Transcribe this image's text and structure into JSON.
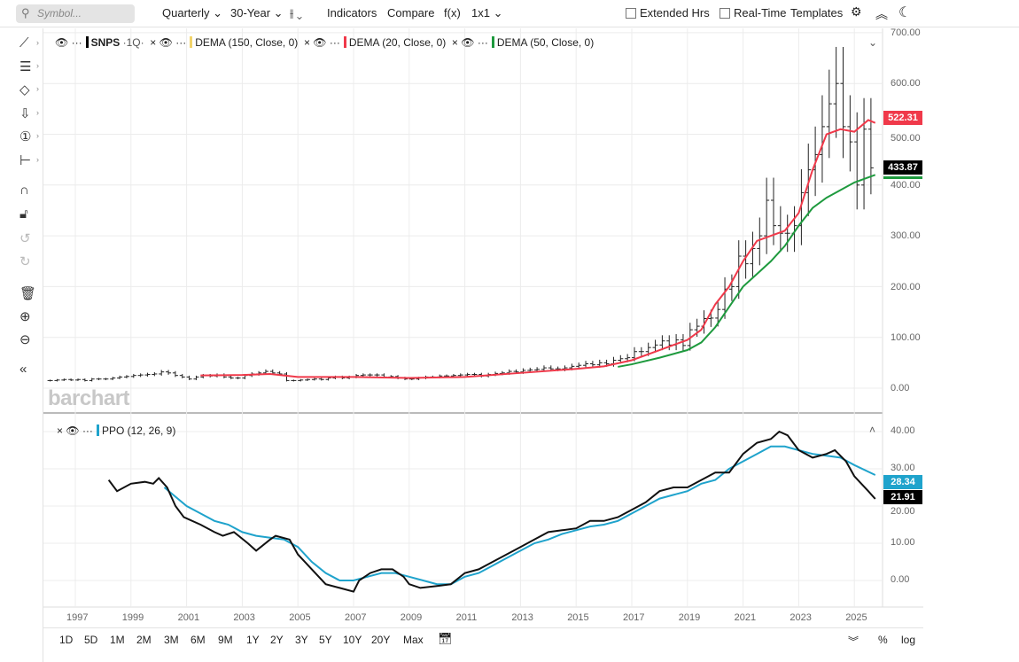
{
  "toolbar": {
    "search_placeholder": "Symbol...",
    "interval": "Quarterly",
    "range": "30-Year",
    "indicators": "Indicators",
    "compare": "Compare",
    "fx": "f(x)",
    "layout": "1x1",
    "extended_hrs": "Extended Hrs",
    "real_time": "Real-Time",
    "templates": "Templates"
  },
  "legend": {
    "symbol": "SNPS",
    "symbol_interval": "·1Q·",
    "dema150": "DEMA (150, Close, 0)",
    "dema20": "DEMA (20, Close, 0)",
    "dema50": "DEMA (50, Close, 0)",
    "ppo": "PPO (12, 26, 9)",
    "dots": "···",
    "close": "×"
  },
  "colors": {
    "dema150": "#f2d46b",
    "dema20": "#f0394a",
    "dema50": "#1e9a3e",
    "ppo": "#111111",
    "signal": "#1fa3cc",
    "price_tag": "#000000"
  },
  "logo": "barchart",
  "price_axis": {
    "labels": [
      "700.00",
      "600.00",
      "500.00",
      "400.00",
      "300.00",
      "200.00",
      "100.00",
      "0.00"
    ],
    "last_dema20": "522.31",
    "last_close": "433.87"
  },
  "ppo_axis": {
    "labels": [
      "40.00",
      "30.00",
      "20.00",
      "10.00",
      "0.00"
    ],
    "last_signal": "28.34",
    "last_ppo": "21.91"
  },
  "x_axis": {
    "labels": [
      "1997",
      "1999",
      "2001",
      "2003",
      "2005",
      "2007",
      "2009",
      "2011",
      "2013",
      "2015",
      "2017",
      "2019",
      "2021",
      "2023",
      "2025"
    ]
  },
  "ranges": [
    "1D",
    "5D",
    "1M",
    "2M",
    "3M",
    "6M",
    "9M",
    "1Y",
    "2Y",
    "3Y",
    "5Y",
    "10Y",
    "20Y",
    "Max"
  ],
  "bottom_right": {
    "percent": "%",
    "log": "log"
  },
  "chart_data": [
    {
      "type": "ohlc",
      "title": "SNPS Quarterly",
      "x_start": 1996.0,
      "x_step": 0.25,
      "ylim": [
        -40,
        720
      ],
      "closes": [
        15,
        16,
        17,
        16,
        17,
        15,
        18,
        18,
        18,
        20,
        22,
        23,
        25,
        26,
        27,
        28,
        32,
        30,
        25,
        22,
        18,
        22,
        25,
        24,
        26,
        22,
        20,
        20,
        25,
        28,
        30,
        33,
        30,
        28,
        15,
        15,
        16,
        17,
        18,
        17,
        20,
        22,
        20,
        22,
        25,
        26,
        26,
        26,
        22,
        23,
        20,
        18,
        18,
        20,
        22,
        22,
        24,
        24,
        25,
        26,
        27,
        27,
        24,
        27,
        29,
        30,
        33,
        32,
        35,
        36,
        37,
        40,
        38,
        38,
        40,
        43,
        45,
        48,
        46,
        50,
        48,
        55,
        58,
        60,
        72,
        72,
        80,
        85,
        93,
        85,
        95,
        84,
        115,
        122,
        137,
        138,
        155,
        195,
        200,
        260,
        245,
        275,
        300,
        370,
        320,
        305,
        305,
        320,
        385,
        430,
        460,
        515,
        560,
        600,
        515,
        485,
        400,
        510,
        433.87
      ],
      "series": [
        {
          "name": "DEMA (20, Close, 0)",
          "points": [
            [
              2001.5,
              25
            ],
            [
              2003,
              26
            ],
            [
              2004,
              28
            ],
            [
              2005,
              22
            ],
            [
              2007,
              22
            ],
            [
              2009,
              20
            ],
            [
              2011,
              22
            ],
            [
              2013,
              30
            ],
            [
              2015,
              38
            ],
            [
              2016,
              43
            ],
            [
              2017,
              55
            ],
            [
              2018,
              75
            ],
            [
              2019,
              95
            ],
            [
              2019.5,
              115
            ],
            [
              2020,
              165
            ],
            [
              2020.5,
              200
            ],
            [
              2021,
              250
            ],
            [
              2021.5,
              290
            ],
            [
              2022,
              300
            ],
            [
              2022.5,
              310
            ],
            [
              2023,
              345
            ],
            [
              2023.5,
              430
            ],
            [
              2024,
              500
            ],
            [
              2024.5,
              510
            ],
            [
              2025,
              505
            ],
            [
              2025.5,
              528
            ],
            [
              2025.75,
              522.31
            ]
          ]
        },
        {
          "name": "DEMA (50, Close, 0)",
          "points": [
            [
              2016.5,
              42
            ],
            [
              2017,
              47
            ],
            [
              2018,
              60
            ],
            [
              2019,
              75
            ],
            [
              2019.5,
              90
            ],
            [
              2020,
              120
            ],
            [
              2020.5,
              160
            ],
            [
              2021,
              200
            ],
            [
              2021.5,
              225
            ],
            [
              2022,
              250
            ],
            [
              2022.5,
              280
            ],
            [
              2023,
              320
            ],
            [
              2023.5,
              355
            ],
            [
              2024,
              375
            ],
            [
              2024.5,
              390
            ],
            [
              2025,
              405
            ],
            [
              2025.75,
              420
            ]
          ]
        }
      ]
    },
    {
      "type": "line",
      "title": "PPO (12, 26, 9)",
      "ylim": [
        -8,
        44
      ],
      "series": [
        {
          "name": "PPO",
          "points": [
            [
              1998.2,
              27
            ],
            [
              1998.5,
              24
            ],
            [
              1999,
              26
            ],
            [
              1999.5,
              26.5
            ],
            [
              1999.8,
              26
            ],
            [
              2000,
              27.5
            ],
            [
              2000.3,
              25
            ],
            [
              2000.6,
              20
            ],
            [
              2000.9,
              17
            ],
            [
              2001.5,
              15
            ],
            [
              2002,
              13
            ],
            [
              2002.3,
              12
            ],
            [
              2002.7,
              13
            ],
            [
              2003.2,
              10
            ],
            [
              2003.5,
              8
            ],
            [
              2004,
              11
            ],
            [
              2004.2,
              12
            ],
            [
              2004.7,
              11
            ],
            [
              2005,
              7
            ],
            [
              2005.5,
              3
            ],
            [
              2006,
              -1
            ],
            [
              2006.5,
              -2
            ],
            [
              2007,
              -3
            ],
            [
              2007.2,
              0
            ],
            [
              2007.6,
              2
            ],
            [
              2008,
              3
            ],
            [
              2008.4,
              3
            ],
            [
              2008.8,
              1
            ],
            [
              2009,
              -1
            ],
            [
              2009.4,
              -2
            ],
            [
              2010,
              -1.5
            ],
            [
              2010.5,
              -1
            ],
            [
              2011,
              2
            ],
            [
              2011.5,
              3
            ],
            [
              2012,
              5
            ],
            [
              2012.5,
              7
            ],
            [
              2013,
              9
            ],
            [
              2013.5,
              11
            ],
            [
              2014,
              13
            ],
            [
              2014.5,
              13.5
            ],
            [
              2015,
              14
            ],
            [
              2015.5,
              16
            ],
            [
              2016,
              16
            ],
            [
              2016.5,
              17
            ],
            [
              2017,
              19
            ],
            [
              2017.5,
              21
            ],
            [
              2018,
              24
            ],
            [
              2018.5,
              25
            ],
            [
              2019,
              25
            ],
            [
              2019.5,
              27
            ],
            [
              2020,
              29
            ],
            [
              2020.5,
              29
            ],
            [
              2021,
              34
            ],
            [
              2021.5,
              37
            ],
            [
              2022,
              38
            ],
            [
              2022.3,
              40
            ],
            [
              2022.6,
              39
            ],
            [
              2023,
              35
            ],
            [
              2023.5,
              33
            ],
            [
              2024,
              34
            ],
            [
              2024.3,
              35
            ],
            [
              2024.7,
              32
            ],
            [
              2025,
              28
            ],
            [
              2025.5,
              24
            ],
            [
              2025.75,
              21.91
            ]
          ]
        },
        {
          "name": "Signal",
          "points": [
            [
              2000.2,
              25
            ],
            [
              2001,
              20
            ],
            [
              2001.5,
              18
            ],
            [
              2002,
              16
            ],
            [
              2002.5,
              15
            ],
            [
              2003,
              13
            ],
            [
              2003.5,
              12
            ],
            [
              2004,
              11.5
            ],
            [
              2004.5,
              11
            ],
            [
              2005,
              9
            ],
            [
              2005.5,
              5
            ],
            [
              2006,
              2
            ],
            [
              2006.5,
              0
            ],
            [
              2007,
              0
            ],
            [
              2007.5,
              1
            ],
            [
              2008,
              2
            ],
            [
              2008.5,
              2
            ],
            [
              2009,
              1
            ],
            [
              2009.5,
              0
            ],
            [
              2010,
              -1
            ],
            [
              2010.5,
              -1
            ],
            [
              2011,
              1
            ],
            [
              2011.5,
              2
            ],
            [
              2012,
              4
            ],
            [
              2012.5,
              6
            ],
            [
              2013,
              8
            ],
            [
              2013.5,
              10
            ],
            [
              2014,
              11
            ],
            [
              2014.5,
              12.5
            ],
            [
              2015,
              13.5
            ],
            [
              2015.5,
              14.5
            ],
            [
              2016,
              15
            ],
            [
              2016.5,
              16
            ],
            [
              2017,
              18
            ],
            [
              2017.5,
              20
            ],
            [
              2018,
              22
            ],
            [
              2018.5,
              23
            ],
            [
              2019,
              24
            ],
            [
              2019.5,
              26
            ],
            [
              2020,
              27
            ],
            [
              2020.5,
              30
            ],
            [
              2021,
              32
            ],
            [
              2021.5,
              34
            ],
            [
              2022,
              36
            ],
            [
              2022.5,
              36
            ],
            [
              2023,
              35
            ],
            [
              2023.5,
              34
            ],
            [
              2024,
              33.5
            ],
            [
              2024.5,
              33
            ],
            [
              2025,
              31
            ],
            [
              2025.75,
              28.34
            ]
          ]
        }
      ]
    }
  ]
}
